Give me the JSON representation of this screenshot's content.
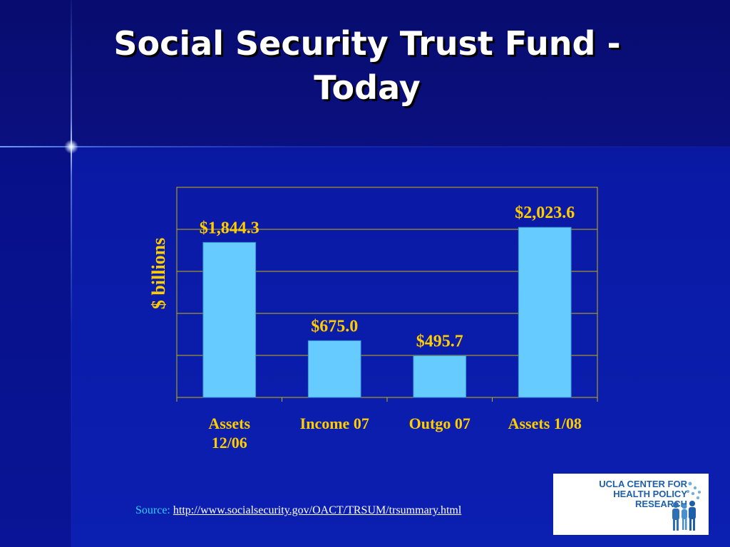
{
  "slide": {
    "title_line1": "Social Security Trust Fund -",
    "title_line2": "Today"
  },
  "source": {
    "label": "Source:",
    "url_text": "http://www.socialsecurity.gov/OACT/TRSUM/trsummary.html"
  },
  "logo": {
    "line1": "UCLA CENTER FOR",
    "line2": "HEALTH POLICY RESEARCH"
  },
  "colors": {
    "bar": "#66ccff",
    "data_label": "#ffcc00",
    "axis_text": "#ffcc00",
    "grid": "#c8b400",
    "source_label": "#33ccff"
  },
  "chart_data": {
    "type": "bar",
    "categories": [
      "Assets\n12/06",
      "Income 07",
      "Outgo 07",
      "Assets 1/08"
    ],
    "values": [
      1844.3,
      675.0,
      495.7,
      2023.6
    ],
    "data_labels": [
      "$1,844.3",
      "$675.0",
      "$495.7",
      "$2,023.6"
    ],
    "title": "",
    "xlabel": "",
    "ylabel": "$ billions",
    "ylim": [
      0,
      2500
    ],
    "grid": true,
    "legend": "none"
  }
}
